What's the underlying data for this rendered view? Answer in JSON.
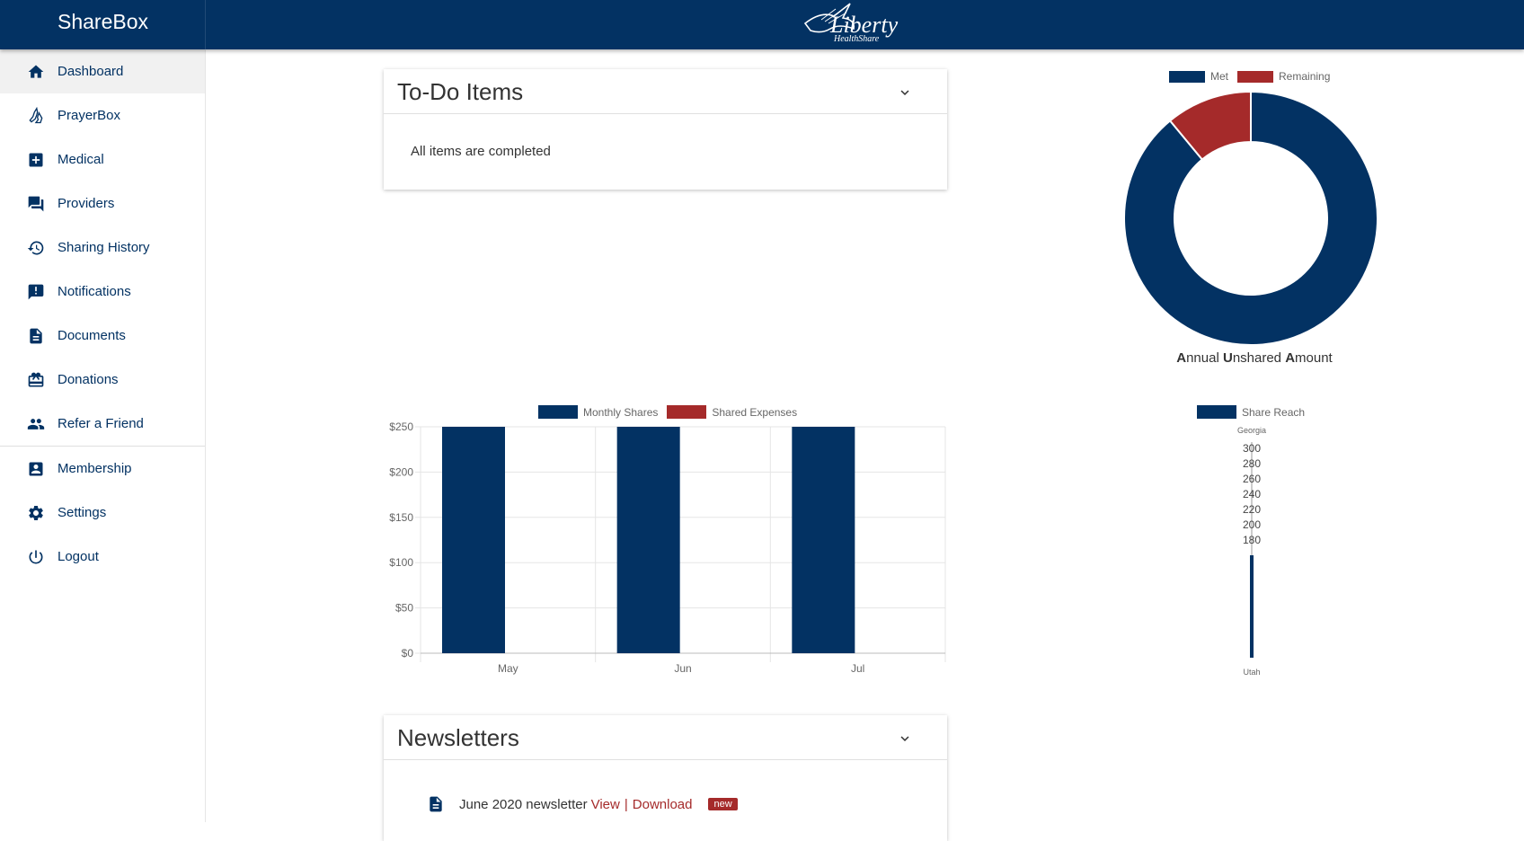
{
  "app": {
    "title": "ShareBox",
    "logo_text": "Liberty",
    "logo_sub": "HealthShare"
  },
  "sidebar": {
    "items": [
      {
        "label": "Dashboard",
        "icon": "home-icon"
      },
      {
        "label": "PrayerBox",
        "icon": "prayer-hands-icon"
      },
      {
        "label": "Medical",
        "icon": "medical-cross-icon"
      },
      {
        "label": "Providers",
        "icon": "chat-bubbles-icon"
      },
      {
        "label": "Sharing History",
        "icon": "history-icon"
      },
      {
        "label": "Notifications",
        "icon": "alert-message-icon"
      },
      {
        "label": "Documents",
        "icon": "document-icon"
      },
      {
        "label": "Donations",
        "icon": "gift-card-icon"
      },
      {
        "label": "Refer a Friend",
        "icon": "people-icon"
      },
      {
        "label": "Membership",
        "icon": "account-box-icon"
      },
      {
        "label": "Settings",
        "icon": "gear-icon"
      },
      {
        "label": "Logout",
        "icon": "power-icon"
      }
    ]
  },
  "todo": {
    "title": "To-Do Items",
    "message": "All items are completed"
  },
  "newsletters": {
    "title": "Newsletters",
    "items": [
      {
        "name": "June 2020 newsletter",
        "view": "View",
        "separator": "|",
        "download": "Download",
        "badge": "new"
      }
    ]
  },
  "colors": {
    "primary": "#033263",
    "accent": "#a52a2a"
  },
  "chart_data": [
    {
      "type": "pie",
      "variant": "doughnut",
      "legend": [
        "Met",
        "Remaining"
      ],
      "values": [
        89,
        11
      ],
      "colors": [
        "#033263",
        "#a52a2a"
      ],
      "caption": {
        "a": "A",
        "b": "nnual ",
        "c": "U",
        "d": "nshared ",
        "e": "A",
        "f": "mount"
      }
    },
    {
      "type": "bar",
      "categories": [
        "May",
        "Jun",
        "Jul"
      ],
      "series": [
        {
          "name": "Monthly Shares",
          "values": [
            250,
            250,
            250
          ],
          "color": "#033263"
        },
        {
          "name": "Shared Expenses",
          "values": [
            0,
            0,
            0
          ],
          "color": "#a52a2a"
        }
      ],
      "ylim": [
        0,
        250
      ],
      "yticks": [
        "$250",
        "$200",
        "$150",
        "$100",
        "$50",
        "$0"
      ],
      "grid": true,
      "legend": "top"
    },
    {
      "type": "bar",
      "variant": "vertical-gauge",
      "series": [
        {
          "name": "Share Reach",
          "color": "#033263"
        }
      ],
      "top_label": "Georgia",
      "bottom_label": "Utah",
      "ticks": [
        "300",
        "280",
        "260",
        "240",
        "220",
        "200",
        "180"
      ]
    }
  ]
}
